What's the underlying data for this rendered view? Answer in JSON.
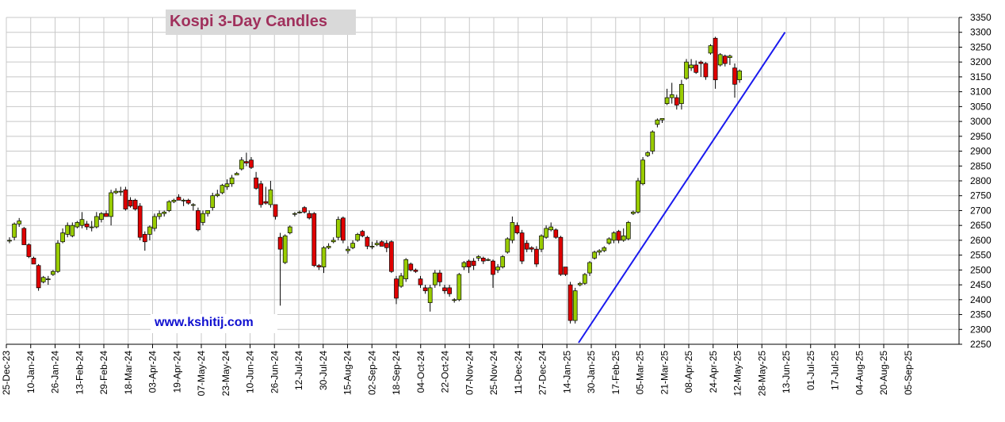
{
  "chart_data": {
    "type": "candlestick",
    "title": "Kospi 3-Day Candles",
    "watermark": "www.kshitij.com",
    "y_axis": {
      "side": "right",
      "min": 2250,
      "max": 3350,
      "step": 50,
      "tick_labels": [
        "3350",
        "3300",
        "3250",
        "3200",
        "3150",
        "3100",
        "3050",
        "3000",
        "2950",
        "2900",
        "2850",
        "2800",
        "2750",
        "2700",
        "2650",
        "2600",
        "2550",
        "2500",
        "2450",
        "2400",
        "2350",
        "2300",
        "2250"
      ]
    },
    "x_axis": {
      "tick_labels": [
        "25-Dec-23",
        "10-Jan-24",
        "26-Jan-24",
        "13-Feb-24",
        "29-Feb-24",
        "18-Mar-24",
        "03-Apr-24",
        "19-Apr-24",
        "07-May-24",
        "23-May-24",
        "10-Jun-24",
        "26-Jun-24",
        "12-Jul-24",
        "30-Jul-24",
        "15-Aug-24",
        "02-Sep-24",
        "18-Sep-24",
        "04-Oct-24",
        "22-Oct-24",
        "07-Nov-24",
        "25-Nov-24",
        "11-Dec-24",
        "27-Dec-24",
        "14-Jan-25",
        "30-Jan-25",
        "17-Feb-25",
        "05-Mar-25",
        "21-Mar-25",
        "08-Apr-25",
        "24-Apr-25",
        "12-May-25",
        "28-May-25",
        "13-Jun-25",
        "01-Jul-25",
        "17-Jul-25",
        "04-Aug-25",
        "20-Aug-25",
        "05-Sep-25"
      ]
    },
    "grid": true,
    "colors": {
      "up": "#99cc00",
      "down": "#e00000",
      "trendline": "#1a1aee",
      "grid": "#c8c8c8"
    },
    "candles": [
      {
        "o": 2600,
        "h": 2610,
        "l": 2590,
        "c": 2600
      },
      {
        "o": 2610,
        "h": 2660,
        "l": 2600,
        "c": 2655
      },
      {
        "o": 2655,
        "h": 2675,
        "l": 2645,
        "c": 2665
      },
      {
        "o": 2640,
        "h": 2645,
        "l": 2585,
        "c": 2585
      },
      {
        "o": 2585,
        "h": 2590,
        "l": 2540,
        "c": 2545
      },
      {
        "o": 2540,
        "h": 2545,
        "l": 2520,
        "c": 2520
      },
      {
        "o": 2515,
        "h": 2520,
        "l": 2430,
        "c": 2440
      },
      {
        "o": 2460,
        "h": 2480,
        "l": 2455,
        "c": 2475
      },
      {
        "o": 2470,
        "h": 2480,
        "l": 2450,
        "c": 2470
      },
      {
        "o": 2485,
        "h": 2500,
        "l": 2480,
        "c": 2495
      },
      {
        "o": 2495,
        "h": 2600,
        "l": 2490,
        "c": 2590
      },
      {
        "o": 2595,
        "h": 2640,
        "l": 2590,
        "c": 2625
      },
      {
        "o": 2620,
        "h": 2660,
        "l": 2610,
        "c": 2650
      },
      {
        "o": 2615,
        "h": 2660,
        "l": 2610,
        "c": 2650
      },
      {
        "o": 2645,
        "h": 2665,
        "l": 2640,
        "c": 2660
      },
      {
        "o": 2650,
        "h": 2695,
        "l": 2640,
        "c": 2670
      },
      {
        "o": 2655,
        "h": 2665,
        "l": 2635,
        "c": 2645
      },
      {
        "o": 2645,
        "h": 2665,
        "l": 2630,
        "c": 2645
      },
      {
        "o": 2645,
        "h": 2695,
        "l": 2640,
        "c": 2680
      },
      {
        "o": 2670,
        "h": 2695,
        "l": 2660,
        "c": 2690
      },
      {
        "o": 2690,
        "h": 2700,
        "l": 2680,
        "c": 2680
      },
      {
        "o": 2680,
        "h": 2770,
        "l": 2650,
        "c": 2760
      },
      {
        "o": 2760,
        "h": 2775,
        "l": 2755,
        "c": 2765
      },
      {
        "o": 2765,
        "h": 2780,
        "l": 2750,
        "c": 2765
      },
      {
        "o": 2770,
        "h": 2780,
        "l": 2700,
        "c": 2705
      },
      {
        "o": 2735,
        "h": 2745,
        "l": 2710,
        "c": 2715
      },
      {
        "o": 2735,
        "h": 2740,
        "l": 2700,
        "c": 2705
      },
      {
        "o": 2715,
        "h": 2725,
        "l": 2600,
        "c": 2610
      },
      {
        "o": 2620,
        "h": 2630,
        "l": 2565,
        "c": 2595
      },
      {
        "o": 2620,
        "h": 2650,
        "l": 2600,
        "c": 2645
      },
      {
        "o": 2640,
        "h": 2690,
        "l": 2630,
        "c": 2680
      },
      {
        "o": 2680,
        "h": 2700,
        "l": 2670,
        "c": 2690
      },
      {
        "o": 2690,
        "h": 2700,
        "l": 2680,
        "c": 2695
      },
      {
        "o": 2700,
        "h": 2735,
        "l": 2695,
        "c": 2730
      },
      {
        "o": 2730,
        "h": 2740,
        "l": 2725,
        "c": 2735
      },
      {
        "o": 2745,
        "h": 2755,
        "l": 2735,
        "c": 2735
      },
      {
        "o": 2735,
        "h": 2740,
        "l": 2715,
        "c": 2735
      },
      {
        "o": 2735,
        "h": 2740,
        "l": 2720,
        "c": 2725
      },
      {
        "o": 2720,
        "h": 2725,
        "l": 2700,
        "c": 2720
      },
      {
        "o": 2700,
        "h": 2710,
        "l": 2630,
        "c": 2635
      },
      {
        "o": 2660,
        "h": 2700,
        "l": 2650,
        "c": 2690
      },
      {
        "o": 2690,
        "h": 2700,
        "l": 2680,
        "c": 2700
      },
      {
        "o": 2710,
        "h": 2760,
        "l": 2700,
        "c": 2750
      },
      {
        "o": 2750,
        "h": 2770,
        "l": 2745,
        "c": 2755
      },
      {
        "o": 2760,
        "h": 2790,
        "l": 2755,
        "c": 2785
      },
      {
        "o": 2780,
        "h": 2805,
        "l": 2770,
        "c": 2790
      },
      {
        "o": 2790,
        "h": 2820,
        "l": 2780,
        "c": 2810
      },
      {
        "o": 2820,
        "h": 2830,
        "l": 2820,
        "c": 2825
      },
      {
        "o": 2840,
        "h": 2880,
        "l": 2835,
        "c": 2870
      },
      {
        "o": 2865,
        "h": 2895,
        "l": 2850,
        "c": 2860
      },
      {
        "o": 2870,
        "h": 2880,
        "l": 2840,
        "c": 2845
      },
      {
        "o": 2810,
        "h": 2830,
        "l": 2770,
        "c": 2775
      },
      {
        "o": 2790,
        "h": 2800,
        "l": 2710,
        "c": 2720
      },
      {
        "o": 2730,
        "h": 2780,
        "l": 2720,
        "c": 2725
      },
      {
        "o": 2720,
        "h": 2800,
        "l": 2710,
        "c": 2770
      },
      {
        "o": 2720,
        "h": 2720,
        "l": 2670,
        "c": 2680
      },
      {
        "o": 2610,
        "h": 2625,
        "l": 2380,
        "c": 2570
      },
      {
        "o": 2525,
        "h": 2620,
        "l": 2520,
        "c": 2615
      },
      {
        "o": 2625,
        "h": 2650,
        "l": 2620,
        "c": 2645
      },
      {
        "o": 2690,
        "h": 2695,
        "l": 2680,
        "c": 2690
      },
      {
        "o": 2695,
        "h": 2700,
        "l": 2690,
        "c": 2695
      },
      {
        "o": 2710,
        "h": 2715,
        "l": 2690,
        "c": 2695
      },
      {
        "o": 2690,
        "h": 2700,
        "l": 2670,
        "c": 2675
      },
      {
        "o": 2690,
        "h": 2695,
        "l": 2510,
        "c": 2515
      },
      {
        "o": 2515,
        "h": 2520,
        "l": 2500,
        "c": 2510
      },
      {
        "o": 2510,
        "h": 2580,
        "l": 2490,
        "c": 2575
      },
      {
        "o": 2575,
        "h": 2590,
        "l": 2570,
        "c": 2580
      },
      {
        "o": 2595,
        "h": 2610,
        "l": 2590,
        "c": 2600
      },
      {
        "o": 2610,
        "h": 2680,
        "l": 2600,
        "c": 2670
      },
      {
        "o": 2675,
        "h": 2680,
        "l": 2590,
        "c": 2600
      },
      {
        "o": 2565,
        "h": 2580,
        "l": 2555,
        "c": 2570
      },
      {
        "o": 2575,
        "h": 2600,
        "l": 2570,
        "c": 2590
      },
      {
        "o": 2600,
        "h": 2625,
        "l": 2595,
        "c": 2620
      },
      {
        "o": 2630,
        "h": 2635,
        "l": 2610,
        "c": 2615
      },
      {
        "o": 2610,
        "h": 2615,
        "l": 2570,
        "c": 2580
      },
      {
        "o": 2580,
        "h": 2595,
        "l": 2570,
        "c": 2580
      },
      {
        "o": 2585,
        "h": 2600,
        "l": 2580,
        "c": 2590
      },
      {
        "o": 2595,
        "h": 2600,
        "l": 2580,
        "c": 2580
      },
      {
        "o": 2590,
        "h": 2600,
        "l": 2560,
        "c": 2575
      },
      {
        "o": 2595,
        "h": 2600,
        "l": 2490,
        "c": 2495
      },
      {
        "o": 2470,
        "h": 2480,
        "l": 2385,
        "c": 2405
      },
      {
        "o": 2445,
        "h": 2490,
        "l": 2440,
        "c": 2480
      },
      {
        "o": 2470,
        "h": 2540,
        "l": 2460,
        "c": 2535
      },
      {
        "o": 2520,
        "h": 2525,
        "l": 2495,
        "c": 2500
      },
      {
        "o": 2500,
        "h": 2505,
        "l": 2490,
        "c": 2495
      },
      {
        "o": 2470,
        "h": 2480,
        "l": 2440,
        "c": 2450
      },
      {
        "o": 2440,
        "h": 2450,
        "l": 2420,
        "c": 2430
      },
      {
        "o": 2390,
        "h": 2450,
        "l": 2360,
        "c": 2440
      },
      {
        "o": 2450,
        "h": 2500,
        "l": 2440,
        "c": 2490
      },
      {
        "o": 2490,
        "h": 2500,
        "l": 2445,
        "c": 2460
      },
      {
        "o": 2440,
        "h": 2450,
        "l": 2420,
        "c": 2430
      },
      {
        "o": 2440,
        "h": 2450,
        "l": 2410,
        "c": 2420
      },
      {
        "o": 2400,
        "h": 2405,
        "l": 2390,
        "c": 2400
      },
      {
        "o": 2400,
        "h": 2490,
        "l": 2395,
        "c": 2485
      },
      {
        "o": 2510,
        "h": 2530,
        "l": 2500,
        "c": 2525
      },
      {
        "o": 2530,
        "h": 2535,
        "l": 2490,
        "c": 2510
      },
      {
        "o": 2530,
        "h": 2540,
        "l": 2500,
        "c": 2515
      },
      {
        "o": 2540,
        "h": 2550,
        "l": 2530,
        "c": 2545
      },
      {
        "o": 2540,
        "h": 2545,
        "l": 2520,
        "c": 2530
      },
      {
        "o": 2535,
        "h": 2540,
        "l": 2530,
        "c": 2535
      },
      {
        "o": 2530,
        "h": 2535,
        "l": 2440,
        "c": 2485
      },
      {
        "o": 2500,
        "h": 2520,
        "l": 2490,
        "c": 2510
      },
      {
        "o": 2510,
        "h": 2550,
        "l": 2505,
        "c": 2545
      },
      {
        "o": 2560,
        "h": 2610,
        "l": 2555,
        "c": 2605
      },
      {
        "o": 2600,
        "h": 2680,
        "l": 2590,
        "c": 2660
      },
      {
        "o": 2650,
        "h": 2660,
        "l": 2620,
        "c": 2625
      },
      {
        "o": 2625,
        "h": 2635,
        "l": 2520,
        "c": 2530
      },
      {
        "o": 2590,
        "h": 2600,
        "l": 2560,
        "c": 2570
      },
      {
        "o": 2575,
        "h": 2580,
        "l": 2560,
        "c": 2570
      },
      {
        "o": 2570,
        "h": 2580,
        "l": 2510,
        "c": 2520
      },
      {
        "o": 2570,
        "h": 2620,
        "l": 2560,
        "c": 2615
      },
      {
        "o": 2610,
        "h": 2650,
        "l": 2605,
        "c": 2640
      },
      {
        "o": 2635,
        "h": 2660,
        "l": 2630,
        "c": 2645
      },
      {
        "o": 2635,
        "h": 2640,
        "l": 2605,
        "c": 2610
      },
      {
        "o": 2610,
        "h": 2615,
        "l": 2480,
        "c": 2485
      },
      {
        "o": 2510,
        "h": 2510,
        "l": 2480,
        "c": 2485
      },
      {
        "o": 2450,
        "h": 2460,
        "l": 2320,
        "c": 2330
      },
      {
        "o": 2330,
        "h": 2440,
        "l": 2320,
        "c": 2430
      },
      {
        "o": 2450,
        "h": 2460,
        "l": 2445,
        "c": 2455
      },
      {
        "o": 2455,
        "h": 2490,
        "l": 2450,
        "c": 2485
      },
      {
        "o": 2490,
        "h": 2530,
        "l": 2480,
        "c": 2525
      },
      {
        "o": 2540,
        "h": 2565,
        "l": 2535,
        "c": 2560
      },
      {
        "o": 2560,
        "h": 2570,
        "l": 2550,
        "c": 2565
      },
      {
        "o": 2565,
        "h": 2580,
        "l": 2560,
        "c": 2575
      },
      {
        "o": 2590,
        "h": 2610,
        "l": 2585,
        "c": 2605
      },
      {
        "o": 2600,
        "h": 2630,
        "l": 2590,
        "c": 2625
      },
      {
        "o": 2630,
        "h": 2635,
        "l": 2590,
        "c": 2600
      },
      {
        "o": 2600,
        "h": 2640,
        "l": 2595,
        "c": 2615
      },
      {
        "o": 2605,
        "h": 2665,
        "l": 2600,
        "c": 2660
      },
      {
        "o": 2690,
        "h": 2700,
        "l": 2685,
        "c": 2695
      },
      {
        "o": 2695,
        "h": 2810,
        "l": 2690,
        "c": 2800
      },
      {
        "o": 2790,
        "h": 2880,
        "l": 2785,
        "c": 2870
      },
      {
        "o": 2885,
        "h": 2900,
        "l": 2880,
        "c": 2895
      },
      {
        "o": 2900,
        "h": 2970,
        "l": 2890,
        "c": 2965
      },
      {
        "o": 2990,
        "h": 3010,
        "l": 2980,
        "c": 3005
      },
      {
        "o": 3005,
        "h": 3010,
        "l": 2995,
        "c": 3010
      },
      {
        "o": 3060,
        "h": 3110,
        "l": 3055,
        "c": 3080
      },
      {
        "o": 3080,
        "h": 3130,
        "l": 3060,
        "c": 3090
      },
      {
        "o": 3080,
        "h": 3090,
        "l": 3040,
        "c": 3055
      },
      {
        "o": 3060,
        "h": 3140,
        "l": 3040,
        "c": 3125
      },
      {
        "o": 3145,
        "h": 3210,
        "l": 3140,
        "c": 3200
      },
      {
        "o": 3180,
        "h": 3210,
        "l": 3170,
        "c": 3190
      },
      {
        "o": 3190,
        "h": 3205,
        "l": 3160,
        "c": 3165
      },
      {
        "o": 3200,
        "h": 3205,
        "l": 3150,
        "c": 3195
      },
      {
        "o": 3195,
        "h": 3200,
        "l": 3140,
        "c": 3150
      },
      {
        "o": 3230,
        "h": 3260,
        "l": 3225,
        "c": 3255
      },
      {
        "o": 3280,
        "h": 3285,
        "l": 3110,
        "c": 3140
      },
      {
        "o": 3190,
        "h": 3230,
        "l": 3185,
        "c": 3225
      },
      {
        "o": 3220,
        "h": 3225,
        "l": 3185,
        "c": 3195
      },
      {
        "o": 3215,
        "h": 3225,
        "l": 3190,
        "c": 3220
      },
      {
        "o": 3180,
        "h": 3195,
        "l": 3080,
        "c": 3125
      },
      {
        "o": 3140,
        "h": 3175,
        "l": 3130,
        "c": 3170
      }
    ],
    "trendline": [
      {
        "candle": 117.7,
        "value": 2255
      },
      {
        "candle": 160.4,
        "value": 3300
      }
    ]
  }
}
